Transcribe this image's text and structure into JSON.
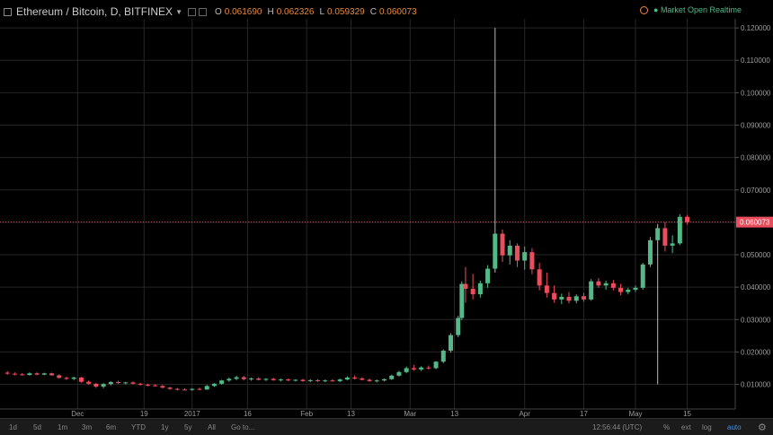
{
  "legend": {
    "symbol": "Ethereum / Bitcoin, D, BITFINEX",
    "o_label": "O",
    "o_value": "0.061690",
    "h_label": "H",
    "h_value": "0.062326",
    "l_label": "L",
    "l_value": "0.059329",
    "c_label": "C",
    "c_value": "0.060073"
  },
  "status": {
    "text": "Market Open  Realtime"
  },
  "colors": {
    "up": "#53b987",
    "down": "#eb4d5c",
    "grid": "#262626",
    "axis_text": "#9b9b9b",
    "price_line": "#eb4d5c",
    "status": "#53b987"
  },
  "icons": {
    "collapse": "collapse-icon",
    "caret": "dropdown-caret-icon",
    "clock": "clock-icon",
    "gear": "gear-icon"
  },
  "toolbar": {
    "ranges": [
      "1d",
      "5d",
      "1m",
      "3m",
      "6m",
      "YTD",
      "1y",
      "5y",
      "All"
    ],
    "goto": "Go to...",
    "time": "12:56:44 (UTC)",
    "pct": "%",
    "ext": "ext",
    "log": "log",
    "auto": "auto"
  },
  "chart_data": {
    "type": "candlestick",
    "symbol": "Ethereum / Bitcoin, D, BITFINEX",
    "interval": "1D",
    "y_axis_labels": [
      "0.120000",
      "0.110000",
      "0.100000",
      "0.090000",
      "0.080000",
      "0.070000",
      "0.060000",
      "0.050000",
      "0.040000",
      "0.030000",
      "0.020000",
      "0.010000"
    ],
    "ylim": [
      0.0024,
      0.1228
    ],
    "grid": true,
    "x_axis_labels": [
      "Dec",
      "19",
      "2017",
      "16",
      "Feb",
      "13",
      "Mar",
      "13",
      "Apr",
      "17",
      "May",
      "15"
    ],
    "x_label_dates": [
      "2016-12-01",
      "2016-12-19",
      "2017-01-01",
      "2017-01-16",
      "2017-02-01",
      "2017-02-13",
      "2017-03-01",
      "2017-03-13",
      "2017-04-01",
      "2017-04-17",
      "2017-05-01",
      "2017-05-15"
    ],
    "x_range": [
      "2016-11-10",
      "2017-05-28"
    ],
    "last_price": 0.060073,
    "last_price_label": "0.060073",
    "candles": [
      {
        "date": "2016-11-12",
        "o": 0.0136,
        "h": 0.0141,
        "l": 0.013,
        "c": 0.0133
      },
      {
        "date": "2016-11-14",
        "o": 0.0133,
        "h": 0.0137,
        "l": 0.0128,
        "c": 0.0131
      },
      {
        "date": "2016-11-16",
        "o": 0.0131,
        "h": 0.0135,
        "l": 0.0127,
        "c": 0.0129
      },
      {
        "date": "2016-11-18",
        "o": 0.0129,
        "h": 0.0137,
        "l": 0.0127,
        "c": 0.0134
      },
      {
        "date": "2016-11-20",
        "o": 0.0134,
        "h": 0.0137,
        "l": 0.0128,
        "c": 0.013
      },
      {
        "date": "2016-11-22",
        "o": 0.013,
        "h": 0.0136,
        "l": 0.0128,
        "c": 0.0134
      },
      {
        "date": "2016-11-24",
        "o": 0.0134,
        "h": 0.0136,
        "l": 0.0127,
        "c": 0.0128
      },
      {
        "date": "2016-11-26",
        "o": 0.0128,
        "h": 0.0131,
        "l": 0.0118,
        "c": 0.012
      },
      {
        "date": "2016-11-28",
        "o": 0.012,
        "h": 0.0124,
        "l": 0.0114,
        "c": 0.0117
      },
      {
        "date": "2016-11-30",
        "o": 0.0117,
        "h": 0.0124,
        "l": 0.0113,
        "c": 0.0121
      },
      {
        "date": "2016-12-02",
        "o": 0.0121,
        "h": 0.0123,
        "l": 0.0105,
        "c": 0.0108
      },
      {
        "date": "2016-12-04",
        "o": 0.0108,
        "h": 0.0112,
        "l": 0.0099,
        "c": 0.0102
      },
      {
        "date": "2016-12-06",
        "o": 0.0102,
        "h": 0.0104,
        "l": 0.0089,
        "c": 0.0093
      },
      {
        "date": "2016-12-08",
        "o": 0.0093,
        "h": 0.0104,
        "l": 0.0088,
        "c": 0.0101
      },
      {
        "date": "2016-12-10",
        "o": 0.0101,
        "h": 0.011,
        "l": 0.0097,
        "c": 0.0107
      },
      {
        "date": "2016-12-12",
        "o": 0.0107,
        "h": 0.0111,
        "l": 0.0102,
        "c": 0.0104
      },
      {
        "date": "2016-12-14",
        "o": 0.0104,
        "h": 0.0108,
        "l": 0.01,
        "c": 0.0106
      },
      {
        "date": "2016-12-16",
        "o": 0.0106,
        "h": 0.0109,
        "l": 0.01,
        "c": 0.0102
      },
      {
        "date": "2016-12-18",
        "o": 0.0102,
        "h": 0.0105,
        "l": 0.0096,
        "c": 0.0099
      },
      {
        "date": "2016-12-20",
        "o": 0.0099,
        "h": 0.0102,
        "l": 0.0094,
        "c": 0.0097
      },
      {
        "date": "2016-12-22",
        "o": 0.0097,
        "h": 0.0101,
        "l": 0.0093,
        "c": 0.0095
      },
      {
        "date": "2016-12-24",
        "o": 0.0095,
        "h": 0.0098,
        "l": 0.0088,
        "c": 0.009
      },
      {
        "date": "2016-12-26",
        "o": 0.009,
        "h": 0.0092,
        "l": 0.0083,
        "c": 0.0086
      },
      {
        "date": "2016-12-28",
        "o": 0.0086,
        "h": 0.0089,
        "l": 0.0081,
        "c": 0.0084
      },
      {
        "date": "2016-12-30",
        "o": 0.0084,
        "h": 0.0088,
        "l": 0.0081,
        "c": 0.0083
      },
      {
        "date": "2017-01-01",
        "o": 0.0083,
        "h": 0.0088,
        "l": 0.008,
        "c": 0.0086
      },
      {
        "date": "2017-01-03",
        "o": 0.0086,
        "h": 0.009,
        "l": 0.0082,
        "c": 0.0084
      },
      {
        "date": "2017-01-05",
        "o": 0.0084,
        "h": 0.0098,
        "l": 0.0083,
        "c": 0.0095
      },
      {
        "date": "2017-01-07",
        "o": 0.0095,
        "h": 0.0104,
        "l": 0.0092,
        "c": 0.0102
      },
      {
        "date": "2017-01-09",
        "o": 0.0102,
        "h": 0.0114,
        "l": 0.0099,
        "c": 0.0112
      },
      {
        "date": "2017-01-11",
        "o": 0.0112,
        "h": 0.0121,
        "l": 0.0108,
        "c": 0.0117
      },
      {
        "date": "2017-01-13",
        "o": 0.0117,
        "h": 0.0127,
        "l": 0.0113,
        "c": 0.0122
      },
      {
        "date": "2017-01-15",
        "o": 0.0122,
        "h": 0.0126,
        "l": 0.0112,
        "c": 0.0116
      },
      {
        "date": "2017-01-17",
        "o": 0.0116,
        "h": 0.0121,
        "l": 0.0111,
        "c": 0.0118
      },
      {
        "date": "2017-01-19",
        "o": 0.0118,
        "h": 0.0122,
        "l": 0.0112,
        "c": 0.0114
      },
      {
        "date": "2017-01-21",
        "o": 0.0114,
        "h": 0.0119,
        "l": 0.011,
        "c": 0.0117
      },
      {
        "date": "2017-01-23",
        "o": 0.0117,
        "h": 0.012,
        "l": 0.0111,
        "c": 0.0113
      },
      {
        "date": "2017-01-25",
        "o": 0.0113,
        "h": 0.0118,
        "l": 0.0109,
        "c": 0.0115
      },
      {
        "date": "2017-01-27",
        "o": 0.0115,
        "h": 0.0118,
        "l": 0.011,
        "c": 0.0112
      },
      {
        "date": "2017-01-29",
        "o": 0.0112,
        "h": 0.0116,
        "l": 0.0109,
        "c": 0.0114
      },
      {
        "date": "2017-01-31",
        "o": 0.0114,
        "h": 0.0117,
        "l": 0.0108,
        "c": 0.011
      },
      {
        "date": "2017-02-02",
        "o": 0.011,
        "h": 0.0116,
        "l": 0.0107,
        "c": 0.0113
      },
      {
        "date": "2017-02-04",
        "o": 0.0113,
        "h": 0.0116,
        "l": 0.0108,
        "c": 0.011
      },
      {
        "date": "2017-02-06",
        "o": 0.011,
        "h": 0.0115,
        "l": 0.0107,
        "c": 0.0112
      },
      {
        "date": "2017-02-08",
        "o": 0.0112,
        "h": 0.0116,
        "l": 0.0108,
        "c": 0.011
      },
      {
        "date": "2017-02-10",
        "o": 0.011,
        "h": 0.0118,
        "l": 0.0107,
        "c": 0.0115
      },
      {
        "date": "2017-02-12",
        "o": 0.0115,
        "h": 0.0125,
        "l": 0.0112,
        "c": 0.0121
      },
      {
        "date": "2017-02-14",
        "o": 0.0121,
        "h": 0.0128,
        "l": 0.0115,
        "c": 0.0118
      },
      {
        "date": "2017-02-16",
        "o": 0.0118,
        "h": 0.0122,
        "l": 0.0112,
        "c": 0.0114
      },
      {
        "date": "2017-02-18",
        "o": 0.0114,
        "h": 0.0118,
        "l": 0.0108,
        "c": 0.011
      },
      {
        "date": "2017-02-20",
        "o": 0.011,
        "h": 0.0115,
        "l": 0.0106,
        "c": 0.0112
      },
      {
        "date": "2017-02-22",
        "o": 0.0112,
        "h": 0.0118,
        "l": 0.0109,
        "c": 0.0116
      },
      {
        "date": "2017-02-24",
        "o": 0.0116,
        "h": 0.013,
        "l": 0.0114,
        "c": 0.0127
      },
      {
        "date": "2017-02-26",
        "o": 0.0127,
        "h": 0.0142,
        "l": 0.0124,
        "c": 0.0138
      },
      {
        "date": "2017-02-28",
        "o": 0.0138,
        "h": 0.0155,
        "l": 0.0134,
        "c": 0.015
      },
      {
        "date": "2017-03-02",
        "o": 0.015,
        "h": 0.016,
        "l": 0.0142,
        "c": 0.0146
      },
      {
        "date": "2017-03-04",
        "o": 0.0146,
        "h": 0.0156,
        "l": 0.0141,
        "c": 0.0152
      },
      {
        "date": "2017-03-06",
        "o": 0.0152,
        "h": 0.0158,
        "l": 0.0146,
        "c": 0.015
      },
      {
        "date": "2017-03-08",
        "o": 0.015,
        "h": 0.0172,
        "l": 0.0147,
        "c": 0.017
      },
      {
        "date": "2017-03-10",
        "o": 0.017,
        "h": 0.0208,
        "l": 0.0165,
        "c": 0.0204
      },
      {
        "date": "2017-03-12",
        "o": 0.0204,
        "h": 0.0258,
        "l": 0.0198,
        "c": 0.0252
      },
      {
        "date": "2017-03-14",
        "o": 0.0252,
        "h": 0.0312,
        "l": 0.0245,
        "c": 0.0305
      },
      {
        "date": "2017-03-15",
        "o": 0.0305,
        "h": 0.0418,
        "l": 0.0298,
        "c": 0.041
      },
      {
        "date": "2017-03-16",
        "o": 0.041,
        "h": 0.0462,
        "l": 0.0352,
        "c": 0.0395
      },
      {
        "date": "2017-03-18",
        "o": 0.0395,
        "h": 0.0441,
        "l": 0.0362,
        "c": 0.0378
      },
      {
        "date": "2017-03-20",
        "o": 0.0378,
        "h": 0.042,
        "l": 0.0368,
        "c": 0.0412
      },
      {
        "date": "2017-03-22",
        "o": 0.0412,
        "h": 0.0468,
        "l": 0.0398,
        "c": 0.0457
      },
      {
        "date": "2017-03-24",
        "o": 0.0457,
        "h": 0.12,
        "l": 0.0445,
        "c": 0.0565
      },
      {
        "date": "2017-03-26",
        "o": 0.0565,
        "h": 0.0578,
        "l": 0.0478,
        "c": 0.0498
      },
      {
        "date": "2017-03-28",
        "o": 0.0498,
        "h": 0.0545,
        "l": 0.047,
        "c": 0.0528
      },
      {
        "date": "2017-03-30",
        "o": 0.0528,
        "h": 0.0535,
        "l": 0.0462,
        "c": 0.0482
      },
      {
        "date": "2017-04-01",
        "o": 0.0482,
        "h": 0.0525,
        "l": 0.0454,
        "c": 0.0508
      },
      {
        "date": "2017-04-03",
        "o": 0.0508,
        "h": 0.052,
        "l": 0.044,
        "c": 0.0455
      },
      {
        "date": "2017-04-05",
        "o": 0.0455,
        "h": 0.0475,
        "l": 0.039,
        "c": 0.0405
      },
      {
        "date": "2017-04-07",
        "o": 0.0405,
        "h": 0.0445,
        "l": 0.0368,
        "c": 0.0382
      },
      {
        "date": "2017-04-09",
        "o": 0.0382,
        "h": 0.0405,
        "l": 0.0352,
        "c": 0.0362
      },
      {
        "date": "2017-04-11",
        "o": 0.0362,
        "h": 0.038,
        "l": 0.0348,
        "c": 0.037
      },
      {
        "date": "2017-04-13",
        "o": 0.037,
        "h": 0.0385,
        "l": 0.035,
        "c": 0.0358
      },
      {
        "date": "2017-04-15",
        "o": 0.0358,
        "h": 0.0378,
        "l": 0.035,
        "c": 0.0372
      },
      {
        "date": "2017-04-17",
        "o": 0.0372,
        "h": 0.0382,
        "l": 0.0355,
        "c": 0.0362
      },
      {
        "date": "2017-04-19",
        "o": 0.0362,
        "h": 0.0425,
        "l": 0.0358,
        "c": 0.0418
      },
      {
        "date": "2017-04-21",
        "o": 0.0418,
        "h": 0.0428,
        "l": 0.0398,
        "c": 0.0405
      },
      {
        "date": "2017-04-23",
        "o": 0.0405,
        "h": 0.042,
        "l": 0.0392,
        "c": 0.0412
      },
      {
        "date": "2017-04-25",
        "o": 0.0412,
        "h": 0.0422,
        "l": 0.039,
        "c": 0.0398
      },
      {
        "date": "2017-04-27",
        "o": 0.0398,
        "h": 0.041,
        "l": 0.0375,
        "c": 0.0385
      },
      {
        "date": "2017-04-29",
        "o": 0.0385,
        "h": 0.0398,
        "l": 0.0378,
        "c": 0.0392
      },
      {
        "date": "2017-05-01",
        "o": 0.0392,
        "h": 0.0405,
        "l": 0.0385,
        "c": 0.0398
      },
      {
        "date": "2017-05-03",
        "o": 0.0398,
        "h": 0.0475,
        "l": 0.0392,
        "c": 0.047
      },
      {
        "date": "2017-05-05",
        "o": 0.047,
        "h": 0.0555,
        "l": 0.0462,
        "c": 0.0545
      },
      {
        "date": "2017-05-07",
        "o": 0.0545,
        "h": 0.0595,
        "l": 0.01,
        "c": 0.0582
      },
      {
        "date": "2017-05-09",
        "o": 0.0582,
        "h": 0.06,
        "l": 0.051,
        "c": 0.0528
      },
      {
        "date": "2017-05-11",
        "o": 0.0528,
        "h": 0.056,
        "l": 0.0505,
        "c": 0.0535
      },
      {
        "date": "2017-05-13",
        "o": 0.0535,
        "h": 0.0625,
        "l": 0.053,
        "c": 0.0617
      },
      {
        "date": "2017-05-15",
        "o": 0.0617,
        "h": 0.0623,
        "l": 0.0593,
        "c": 0.0601
      }
    ]
  }
}
